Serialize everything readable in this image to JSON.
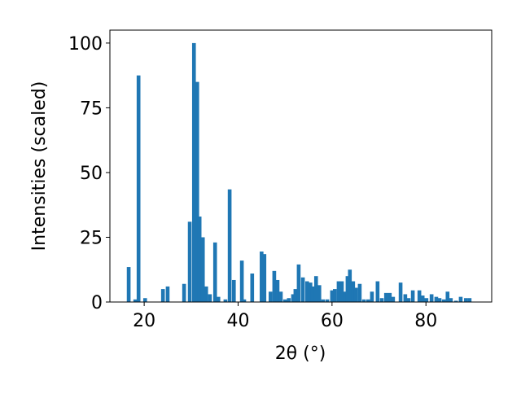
{
  "chart_data": {
    "type": "bar",
    "xlabel": "2θ (°)",
    "ylabel": "Intensities (scaled)",
    "color": "#1f77b4",
    "x": [
      16.7,
      18.1,
      18.8,
      20.2,
      24.0,
      25.0,
      28.5,
      29.7,
      30.6,
      31.3,
      31.8,
      32.5,
      33.2,
      34.0,
      35.1,
      35.8,
      37.3,
      38.2,
      39.1,
      40.8,
      41.3,
      43.0,
      45.0,
      45.6,
      46.9,
      47.7,
      48.4,
      49.1,
      50.0,
      50.8,
      51.7,
      52.2,
      52.9,
      53.8,
      54.7,
      55.4,
      55.9,
      56.6,
      57.3,
      58.1,
      59.0,
      60.0,
      60.6,
      61.4,
      62.1,
      62.8,
      63.3,
      63.8,
      64.5,
      65.1,
      65.9,
      66.8,
      67.7,
      68.5,
      69.7,
      70.6,
      71.5,
      72.3,
      73.0,
      74.6,
      75.6,
      76.3,
      77.2,
      78.6,
      79.3,
      80.1,
      81.2,
      82.2,
      82.9,
      83.8,
      84.6,
      85.3,
      86.4,
      87.4,
      88.5,
      89.3
    ],
    "values": [
      13.5,
      1,
      87.5,
      1.5,
      5,
      6,
      7,
      31,
      100,
      85,
      33,
      25,
      6,
      3,
      23,
      2,
      1,
      43.5,
      8.5,
      16,
      1,
      11,
      19.5,
      18.5,
      4,
      12,
      8.5,
      4,
      1,
      1.5,
      3,
      5,
      14.5,
      9.5,
      8,
      7.5,
      6,
      10,
      6.5,
      1,
      1,
      4.5,
      5,
      8,
      8,
      4,
      10,
      12.5,
      8,
      5.5,
      7,
      1,
      1,
      4,
      8,
      1.5,
      3.5,
      3.5,
      2,
      7.5,
      3,
      1.5,
      4.5,
      4.5,
      2.5,
      1.5,
      3,
      2,
      1.5,
      1,
      4,
      1.5,
      0.5,
      2,
      1.5,
      1.5
    ],
    "xlim": [
      12.7,
      94.0
    ],
    "ylim": [
      0,
      105
    ],
    "xticks": [
      20,
      40,
      60,
      80
    ],
    "yticks": [
      0,
      25,
      50,
      75,
      100
    ]
  }
}
